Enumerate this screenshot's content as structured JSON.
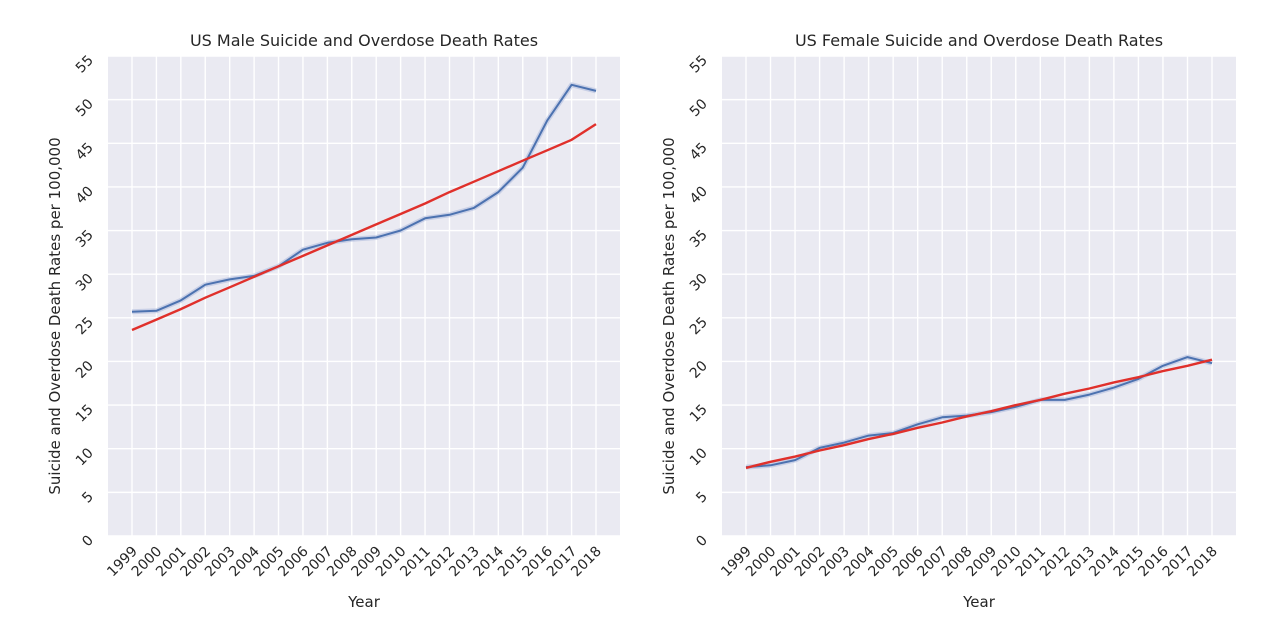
{
  "chart_data": [
    {
      "type": "line",
      "title": "US Male Suicide and Overdose Death Rates",
      "xlabel": "Year",
      "ylabel": "Suicide and Overdose Death Rates per 100,000",
      "x": [
        "1999",
        "2000",
        "2001",
        "2002",
        "2003",
        "2004",
        "2005",
        "2006",
        "2007",
        "2008",
        "2009",
        "2010",
        "2011",
        "2012",
        "2013",
        "2014",
        "2015",
        "2016",
        "2017",
        "2018"
      ],
      "yticks": [
        0,
        5,
        10,
        15,
        20,
        25,
        30,
        35,
        40,
        45,
        50,
        55
      ],
      "ylim": [
        0,
        55
      ],
      "grid": true,
      "series": [
        {
          "values": [
            25.7,
            25.8,
            27.0,
            28.8,
            29.4,
            29.8,
            30.9,
            32.8,
            33.6,
            34.0,
            34.2,
            35.0,
            36.4,
            36.8,
            37.6,
            39.4,
            42.2,
            47.6,
            51.7,
            51.0
          ],
          "color": "#4c72b0"
        },
        {
          "values": [
            23.6,
            24.8,
            26.0,
            27.3,
            28.5,
            29.7,
            30.9,
            32.1,
            33.3,
            34.5,
            35.7,
            36.9,
            38.1,
            39.4,
            40.6,
            41.8,
            43.0,
            44.2,
            45.4,
            47.2
          ],
          "color": "#e0302b"
        }
      ]
    },
    {
      "type": "line",
      "title": "US Female Suicide and Overdose Death Rates",
      "xlabel": "Year",
      "ylabel": "Suicide and Overdose Death Rates per 100,000",
      "x": [
        "1999",
        "2000",
        "2001",
        "2002",
        "2003",
        "2004",
        "2005",
        "2006",
        "2007",
        "2008",
        "2009",
        "2010",
        "2011",
        "2012",
        "2013",
        "2014",
        "2015",
        "2016",
        "2017",
        "2018"
      ],
      "yticks": [
        0,
        5,
        10,
        15,
        20,
        25,
        30,
        35,
        40,
        45,
        50,
        55
      ],
      "ylim": [
        0,
        55
      ],
      "grid": true,
      "series": [
        {
          "values": [
            7.9,
            8.1,
            8.7,
            10.1,
            10.7,
            11.5,
            11.8,
            12.8,
            13.6,
            13.8,
            14.2,
            14.8,
            15.6,
            15.6,
            16.2,
            17.0,
            18.0,
            19.5,
            20.5,
            19.8
          ],
          "color": "#4c72b0"
        },
        {
          "values": [
            7.8,
            8.5,
            9.1,
            9.8,
            10.4,
            11.1,
            11.7,
            12.4,
            13.0,
            13.7,
            14.3,
            15.0,
            15.6,
            16.3,
            16.9,
            17.6,
            18.2,
            18.9,
            19.5,
            20.2
          ],
          "color": "#e0302b"
        }
      ]
    }
  ]
}
